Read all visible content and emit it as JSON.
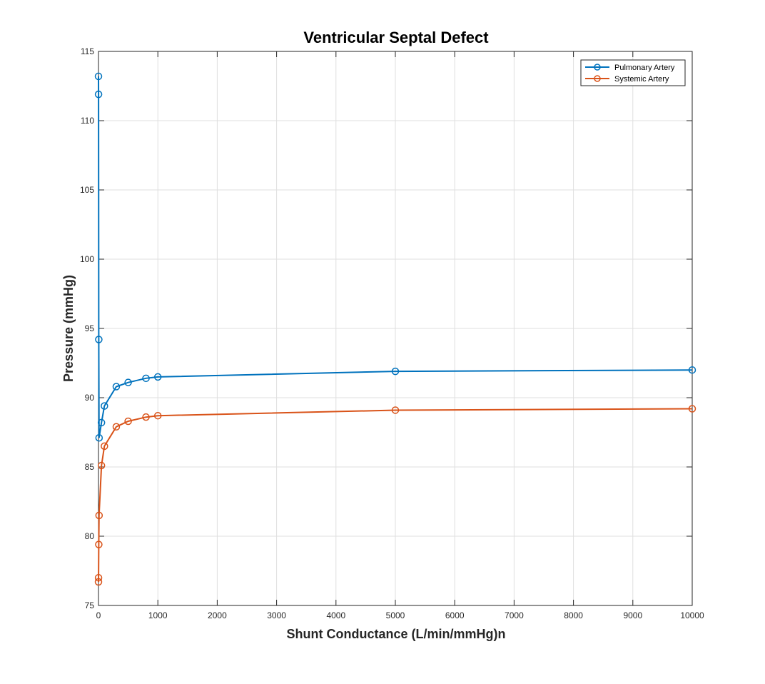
{
  "chart_data": {
    "type": "line",
    "title": "Ventricular Septal Defect",
    "xlabel": "Shunt Conductance (L/min/mmHg)n",
    "ylabel": "Pressure (mmHg)",
    "xlim": [
      0,
      10000
    ],
    "ylim": [
      75,
      115
    ],
    "xticks": [
      0,
      1000,
      2000,
      3000,
      4000,
      5000,
      6000,
      7000,
      8000,
      9000,
      10000
    ],
    "xtick_labels": [
      "0",
      "1000",
      "2000",
      "3000",
      "4000",
      "5000",
      "6000",
      "7000",
      "8000",
      "9000",
      "10000"
    ],
    "yticks": [
      75,
      80,
      85,
      90,
      95,
      100,
      105,
      110,
      115
    ],
    "ytick_labels": [
      "75",
      "80",
      "85",
      "90",
      "95",
      "100",
      "105",
      "110",
      "115"
    ],
    "grid": true,
    "legend_position": "top-right",
    "series": [
      {
        "name": "Pulmonary Artery",
        "color": "#0072BD",
        "x": [
          0,
          1,
          5,
          10,
          50,
          100,
          300,
          500,
          800,
          1000,
          5000,
          10000
        ],
        "y": [
          113.2,
          111.9,
          94.2,
          87.1,
          88.2,
          89.4,
          90.8,
          91.1,
          91.4,
          91.5,
          91.9,
          92.0
        ]
      },
      {
        "name": "Systemic Artery",
        "color": "#D95319",
        "x": [
          0,
          1,
          5,
          10,
          50,
          100,
          300,
          500,
          800,
          1000,
          5000,
          10000
        ],
        "y": [
          76.7,
          77.0,
          79.4,
          81.5,
          85.1,
          86.5,
          87.9,
          88.3,
          88.6,
          88.7,
          89.1,
          89.2
        ]
      }
    ]
  }
}
